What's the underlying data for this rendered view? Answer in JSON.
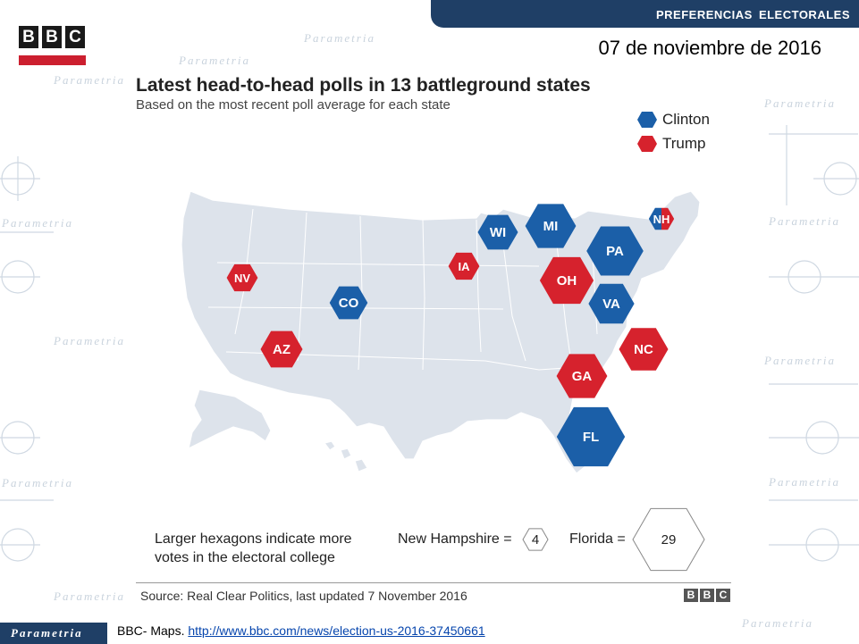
{
  "header": {
    "section_title": "PREFERENCIAS ELECTORALES",
    "date": "07 de noviembre de 2016",
    "logo_letters": [
      "B",
      "B",
      "C"
    ]
  },
  "watermark": {
    "text": "Parametria"
  },
  "figure": {
    "title": "Latest head-to-head polls in 13 battleground states",
    "subtitle": "Based on the most recent poll average for each state",
    "legend": [
      {
        "label": "Clinton",
        "color": "#1b5fa8"
      },
      {
        "label": "Trump",
        "color": "#d6222d"
      }
    ],
    "note": "Larger hexagons indicate more votes in the electoral college",
    "scale": {
      "small_label": "New Hampshire =",
      "small_value": "4",
      "large_label": "Florida =",
      "large_value": "29"
    },
    "source": "Source: Real Clear Politics, last updated 7 November 2016",
    "source_logo": [
      "B",
      "B",
      "C"
    ]
  },
  "chart_data": {
    "type": "other",
    "title": "Latest head-to-head polls in 13 battleground states",
    "subtitle": "Based on the most recent poll average for each state",
    "states": [
      {
        "abbr": "NV",
        "leader": "Trump",
        "electoral_votes": 6
      },
      {
        "abbr": "AZ",
        "leader": "Trump",
        "electoral_votes": 11
      },
      {
        "abbr": "CO",
        "leader": "Clinton",
        "electoral_votes": 9
      },
      {
        "abbr": "IA",
        "leader": "Trump",
        "electoral_votes": 6
      },
      {
        "abbr": "WI",
        "leader": "Clinton",
        "electoral_votes": 10
      },
      {
        "abbr": "MI",
        "leader": "Clinton",
        "electoral_votes": 16
      },
      {
        "abbr": "OH",
        "leader": "Trump",
        "electoral_votes": 18
      },
      {
        "abbr": "PA",
        "leader": "Clinton",
        "electoral_votes": 20
      },
      {
        "abbr": "VA",
        "leader": "Clinton",
        "electoral_votes": 13
      },
      {
        "abbr": "NC",
        "leader": "Trump",
        "electoral_votes": 15
      },
      {
        "abbr": "GA",
        "leader": "Trump",
        "electoral_votes": 16
      },
      {
        "abbr": "FL",
        "leader": "Clinton",
        "electoral_votes": 29
      },
      {
        "abbr": "NH",
        "leader": "Tie",
        "electoral_votes": 4
      }
    ],
    "colors": {
      "Clinton": "#1b5fa8",
      "Trump": "#d6222d"
    }
  },
  "footer": {
    "brand": "Parametria",
    "credit_prefix": "BBC- Maps.",
    "credit_link": "http://www.bbc.com/news/election-us-2016-37450661"
  }
}
